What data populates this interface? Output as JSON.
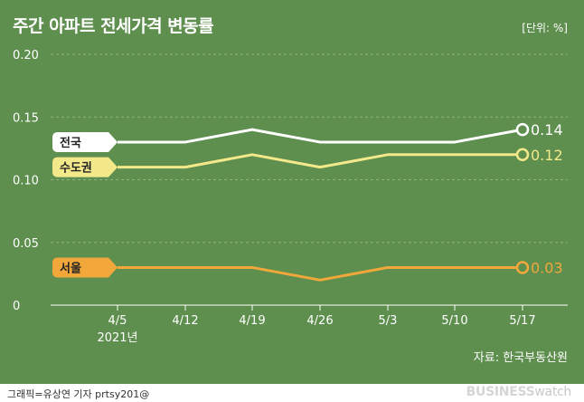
{
  "header": {
    "title": "주간 아파트 전세가격 변동률",
    "unit": "[단위: %]"
  },
  "source": "자료: 한국부동산원",
  "footer": {
    "credit": "그래픽=유상연 기자 prtsy201@",
    "brand_main": "BUSINESS",
    "brand_sub": "watch"
  },
  "colors": {
    "background": "#5e8f4f",
    "grid": "#8fb37f",
    "national": "#ffffff",
    "capital": "#f3e98a",
    "seoul": "#f2a73b"
  },
  "chart_data": {
    "type": "line",
    "categories": [
      "4/5",
      "4/12",
      "4/19",
      "4/26",
      "5/3",
      "5/10",
      "5/17"
    ],
    "category_sublabel": "2021년",
    "ylim": [
      0,
      0.2
    ],
    "yticks": [
      0,
      0.05,
      0.1,
      0.15,
      0.2
    ],
    "ytick_labels": [
      "0",
      "0.05",
      "0.10",
      "0.15",
      "0.20"
    ],
    "grid": true,
    "series": [
      {
        "name": "전국",
        "color": "#ffffff",
        "values": [
          0.13,
          0.13,
          0.14,
          0.13,
          0.13,
          0.13,
          0.14
        ],
        "end_label": "0.14"
      },
      {
        "name": "수도권",
        "color": "#f3e98a",
        "values": [
          0.11,
          0.11,
          0.12,
          0.11,
          0.12,
          0.12,
          0.12
        ],
        "end_label": "0.12"
      },
      {
        "name": "서울",
        "color": "#f2a73b",
        "values": [
          0.03,
          0.03,
          0.03,
          0.02,
          0.03,
          0.03,
          0.03
        ],
        "end_label": "0.03"
      }
    ]
  }
}
